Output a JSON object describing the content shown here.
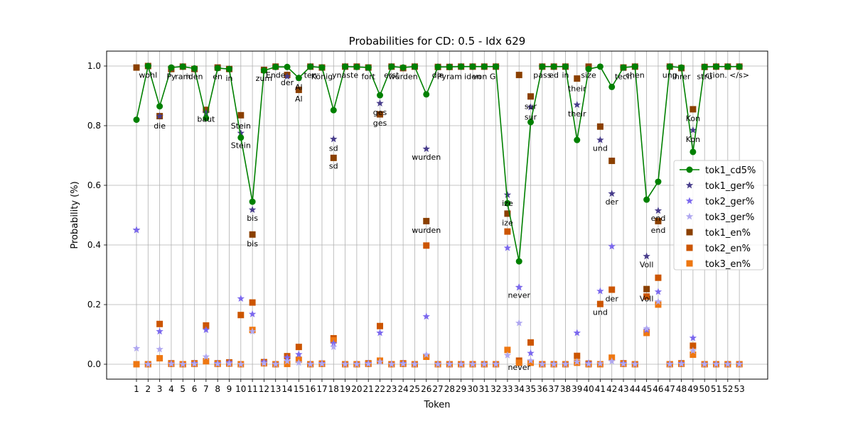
{
  "chart_data": {
    "type": "line",
    "title": "Probabilities for CD: 0.5 - Idx 629",
    "xlabel": "Token",
    "ylabel": "Probability (%)",
    "ylim": [
      -0.05,
      1.05
    ],
    "yticks": [
      "0.0",
      "0.2",
      "0.4",
      "0.6",
      "0.8",
      "1.0"
    ],
    "grid": true,
    "legend_position": "center-right",
    "categories": [
      "1",
      "2",
      "3",
      "4",
      "5",
      "6",
      "7",
      "8",
      "9",
      "10",
      "11",
      "12",
      "13",
      "14",
      "15",
      "16",
      "17",
      "18",
      "19",
      "20",
      "21",
      "22",
      "23",
      "24",
      "25",
      "26",
      "27",
      "28",
      "29",
      "30",
      "31",
      "32",
      "33",
      "34",
      "35",
      "36",
      "37",
      "38",
      "39",
      "40",
      "41",
      "42",
      "43",
      "44",
      "45",
      "46",
      "47",
      "48",
      "49",
      "50",
      "51",
      "52",
      "53"
    ],
    "series": [
      {
        "name": "tok1_cd5%",
        "color": "#008000",
        "marker": "circle",
        "values": [
          0.82,
          1.0,
          0.865,
          0.995,
          0.998,
          0.992,
          0.825,
          0.993,
          0.99,
          0.76,
          0.545,
          0.985,
          0.997,
          0.997,
          0.96,
          0.998,
          0.995,
          0.852,
          0.998,
          0.997,
          0.995,
          0.902,
          0.998,
          0.995,
          0.998,
          0.905,
          0.997,
          0.997,
          0.998,
          0.998,
          0.998,
          0.998,
          0.54,
          0.345,
          0.812,
          0.998,
          0.998,
          0.998,
          0.752,
          0.99,
          0.998,
          0.93,
          0.995,
          0.998,
          0.552,
          0.612,
          0.998,
          0.995,
          0.712,
          0.997,
          0.998,
          0.998,
          0.998
        ]
      },
      {
        "name": "tok1_ger%",
        "color": "#483d8b",
        "marker": "star",
        "values": [
          0.45,
          1.0,
          0.832,
          0.993,
          0.998,
          0.99,
          0.843,
          0.993,
          0.99,
          0.775,
          0.518,
          0.985,
          0.997,
          0.965,
          0.96,
          0.998,
          0.995,
          0.755,
          0.998,
          0.997,
          0.993,
          0.875,
          0.998,
          0.993,
          0.998,
          0.722,
          0.997,
          0.997,
          0.998,
          0.998,
          0.998,
          0.998,
          0.568,
          0.258,
          0.862,
          0.998,
          0.998,
          0.998,
          0.87,
          0.99,
          0.752,
          0.572,
          0.993,
          0.998,
          0.362,
          0.515,
          0.998,
          0.993,
          0.785,
          0.997,
          0.998,
          0.998,
          0.998
        ]
      },
      {
        "name": "tok2_ger%",
        "color": "#7b68ee",
        "marker": "star",
        "values": [
          0.45,
          0.0,
          0.11,
          0.002,
          0.0,
          0.003,
          0.115,
          0.003,
          0.006,
          0.22,
          0.168,
          0.008,
          0.001,
          0.022,
          0.033,
          0.001,
          0.003,
          0.07,
          0.001,
          0.001,
          0.003,
          0.105,
          0.001,
          0.003,
          0.001,
          0.16,
          0.001,
          0.001,
          0.001,
          0.001,
          0.001,
          0.001,
          0.39,
          0.258,
          0.037,
          0.001,
          0.001,
          0.001,
          0.105,
          0.004,
          0.245,
          0.395,
          0.003,
          0.001,
          0.115,
          0.243,
          0.001,
          0.003,
          0.088,
          0.001,
          0.001,
          0.001,
          0.001
        ]
      },
      {
        "name": "tok3_ger%",
        "color": "#b0a8f0",
        "marker": "star",
        "values": [
          0.053,
          0.0,
          0.05,
          0.001,
          0.0,
          0.001,
          0.025,
          0.001,
          0.002,
          0.0,
          0.11,
          0.003,
          0.0,
          0.01,
          0.005,
          0.0,
          0.001,
          0.058,
          0.0,
          0.0,
          0.001,
          0.008,
          0.0,
          0.001,
          0.0,
          0.032,
          0.0,
          0.0,
          0.0,
          0.0,
          0.0,
          0.0,
          0.03,
          0.138,
          0.012,
          0.0,
          0.0,
          0.0,
          0.008,
          0.001,
          0.002,
          0.01,
          0.001,
          0.0,
          0.12,
          0.21,
          0.0,
          0.001,
          0.045,
          0.0,
          0.0,
          0.0,
          0.0
        ]
      },
      {
        "name": "tok1_en%",
        "color": "#8b4000",
        "marker": "square",
        "values": [
          0.995,
          1.0,
          0.832,
          0.99,
          0.998,
          0.99,
          0.853,
          0.995,
          0.99,
          0.835,
          0.435,
          0.987,
          0.998,
          0.97,
          0.92,
          0.998,
          0.995,
          0.692,
          0.998,
          0.998,
          0.995,
          0.838,
          0.998,
          0.993,
          0.998,
          0.48,
          0.997,
          0.997,
          0.998,
          0.998,
          0.998,
          0.998,
          0.505,
          0.97,
          0.898,
          0.998,
          0.998,
          0.998,
          0.958,
          0.998,
          0.797,
          0.682,
          0.995,
          0.998,
          0.252,
          0.48,
          0.998,
          0.993,
          0.855,
          0.997,
          0.998,
          0.998,
          0.998
        ]
      },
      {
        "name": "tok2_en%",
        "color": "#cc5500",
        "marker": "square",
        "values": [
          0.0,
          0.0,
          0.135,
          0.003,
          0.0,
          0.003,
          0.13,
          0.003,
          0.006,
          0.165,
          0.207,
          0.007,
          0.0,
          0.027,
          0.058,
          0.0,
          0.002,
          0.087,
          0.0,
          0.0,
          0.003,
          0.128,
          0.0,
          0.003,
          0.0,
          0.398,
          0.0,
          0.0,
          0.0,
          0.0,
          0.0,
          0.0,
          0.445,
          0.012,
          0.073,
          0.0,
          0.0,
          0.0,
          0.028,
          0.002,
          0.202,
          0.25,
          0.003,
          0.0,
          0.227,
          0.29,
          0.0,
          0.003,
          0.062,
          0.0,
          0.0,
          0.0,
          0.0
        ]
      },
      {
        "name": "tok3_en%",
        "color": "#ee7711",
        "marker": "square",
        "values": [
          0.0,
          0.0,
          0.02,
          0.001,
          0.0,
          0.001,
          0.01,
          0.001,
          0.002,
          0.0,
          0.115,
          0.003,
          0.0,
          0.001,
          0.015,
          0.0,
          0.001,
          0.08,
          0.0,
          0.0,
          0.001,
          0.012,
          0.0,
          0.001,
          0.0,
          0.025,
          0.0,
          0.0,
          0.0,
          0.0,
          0.0,
          0.0,
          0.048,
          0.005,
          0.005,
          0.0,
          0.0,
          0.0,
          0.005,
          0.0,
          0.0,
          0.022,
          0.001,
          0.0,
          0.105,
          0.2,
          0.0,
          0.001,
          0.032,
          0.0,
          0.0,
          0.0,
          0.0
        ]
      }
    ],
    "annotations": [
      {
        "x": 2,
        "y": 0.97,
        "text": "wohl"
      },
      {
        "x": 3,
        "y": 0.8,
        "text": "die"
      },
      {
        "x": 4,
        "y": 0.965,
        "text": "Py"
      },
      {
        "x": 5,
        "y": 0.965,
        "text": "ram"
      },
      {
        "x": 6,
        "y": 0.965,
        "text": "iden"
      },
      {
        "x": 7,
        "y": 0.823,
        "text": "baut"
      },
      {
        "x": 8,
        "y": 0.965,
        "text": "en"
      },
      {
        "x": 9,
        "y": 0.96,
        "text": "in"
      },
      {
        "x": 10,
        "y": 0.8,
        "text": "Stein"
      },
      {
        "x": 10,
        "y": 0.735,
        "text": "Stein"
      },
      {
        "x": 11,
        "y": 0.49,
        "text": "bis"
      },
      {
        "x": 11,
        "y": 0.405,
        "text": "bis"
      },
      {
        "x": 12,
        "y": 0.96,
        "text": "zum"
      },
      {
        "x": 13,
        "y": 0.97,
        "text": "Ende"
      },
      {
        "x": 14,
        "y": 0.945,
        "text": "der"
      },
      {
        "x": 15,
        "y": 0.93,
        "text": "Al"
      },
      {
        "x": 15,
        "y": 0.89,
        "text": "Al"
      },
      {
        "x": 16,
        "y": 0.97,
        "text": "ten"
      },
      {
        "x": 17,
        "y": 0.965,
        "text": "König"
      },
      {
        "x": 18,
        "y": 0.725,
        "text": "sd"
      },
      {
        "x": 18,
        "y": 0.665,
        "text": "sd"
      },
      {
        "x": 19,
        "y": 0.97,
        "text": "ynaste"
      },
      {
        "x": 21,
        "y": 0.965,
        "text": "fort"
      },
      {
        "x": 22,
        "y": 0.845,
        "text": "ges"
      },
      {
        "x": 22,
        "y": 0.81,
        "text": "ges"
      },
      {
        "x": 23,
        "y": 0.97,
        "text": "erst"
      },
      {
        "x": 24,
        "y": 0.965,
        "text": "wurden"
      },
      {
        "x": 26,
        "y": 0.695,
        "text": "wurden"
      },
      {
        "x": 26,
        "y": 0.45,
        "text": "wurden"
      },
      {
        "x": 27,
        "y": 0.97,
        "text": "die"
      },
      {
        "x": 28,
        "y": 0.965,
        "text": "Pyram"
      },
      {
        "x": 30,
        "y": 0.965,
        "text": "iden"
      },
      {
        "x": 31,
        "y": 0.965,
        "text": "von G"
      },
      {
        "x": 33,
        "y": 0.54,
        "text": "ize"
      },
      {
        "x": 33,
        "y": 0.475,
        "text": "ize"
      },
      {
        "x": 34,
        "y": 0.232,
        "text": "never"
      },
      {
        "x": 34,
        "y": -0.01,
        "text": "never"
      },
      {
        "x": 35,
        "y": 0.865,
        "text": "sur"
      },
      {
        "x": 35,
        "y": 0.83,
        "text": "sur"
      },
      {
        "x": 36,
        "y": 0.97,
        "text": "pass"
      },
      {
        "x": 37,
        "y": 0.97,
        "text": "ed"
      },
      {
        "x": 38,
        "y": 0.97,
        "text": "in"
      },
      {
        "x": 39,
        "y": 0.925,
        "text": "their"
      },
      {
        "x": 39,
        "y": 0.84,
        "text": "their"
      },
      {
        "x": 40,
        "y": 0.97,
        "text": "size"
      },
      {
        "x": 41,
        "y": 0.725,
        "text": "und"
      },
      {
        "x": 41,
        "y": 0.175,
        "text": "und"
      },
      {
        "x": 42,
        "y": 0.545,
        "text": "der"
      },
      {
        "x": 42,
        "y": 0.22,
        "text": "der"
      },
      {
        "x": 43,
        "y": 0.965,
        "text": "tech"
      },
      {
        "x": 44,
        "y": 0.97,
        "text": "chen"
      },
      {
        "x": 45,
        "y": 0.335,
        "text": "Voll"
      },
      {
        "x": 45,
        "y": 0.22,
        "text": "Voll"
      },
      {
        "x": 46,
        "y": 0.49,
        "text": "end"
      },
      {
        "x": 46,
        "y": 0.45,
        "text": "end"
      },
      {
        "x": 47,
        "y": 0.97,
        "text": "ung"
      },
      {
        "x": 48,
        "y": 0.965,
        "text": "Ihrer"
      },
      {
        "x": 49,
        "y": 0.825,
        "text": "Kon"
      },
      {
        "x": 49,
        "y": 0.755,
        "text": "Kon"
      },
      {
        "x": 50,
        "y": 0.965,
        "text": "stru"
      },
      {
        "x": 51,
        "y": 0.97,
        "text": "ction."
      },
      {
        "x": 53,
        "y": 0.97,
        "text": "</s>"
      }
    ]
  }
}
